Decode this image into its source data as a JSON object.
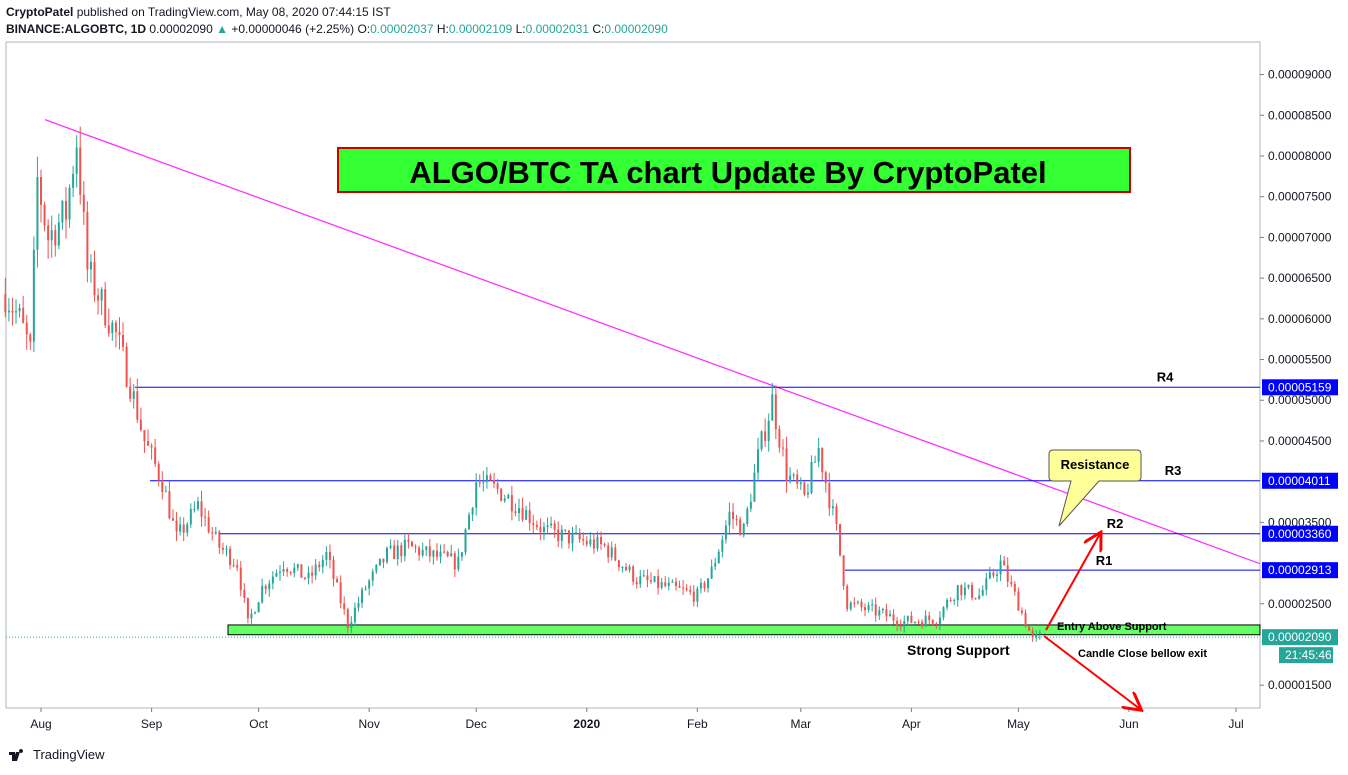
{
  "header": {
    "author": "CryptoPatel",
    "published_text": " published on TradingView.com, May 08, 2020 07:44:15 IST",
    "symbol": "BINANCE:ALGOBTC, 1D",
    "last": "0.00002090",
    "change": "+0.00000046 (+2.25%)",
    "o_label": "O:",
    "o_value": "0.00002037",
    "h_label": "H:",
    "h_value": "0.00002109",
    "l_label": "L:",
    "l_value": "0.00002031",
    "c_label": "C:",
    "c_value": "0.00002090"
  },
  "footer": {
    "brand": "TradingView"
  },
  "colors": {
    "up": "#26a69a",
    "down": "#ef5350",
    "trendline": "#ff33ff",
    "level": "#0000ff",
    "support_zone": "#66ff66",
    "title_box": "#33ff33",
    "title_border": "#cc0000",
    "callout": "#ffff99",
    "arrow": "#ff0000"
  },
  "chart_data": {
    "type": "candlestick",
    "title": "ALGO/BTC TA chart Update By CryptoPatel",
    "x_ticks": [
      "Aug",
      "Sep",
      "Oct",
      "Nov",
      "Dec",
      "2020",
      "Feb",
      "Mar",
      "Apr",
      "May",
      "Jun",
      "Jul"
    ],
    "y_ticks": [
      "0.00009000",
      "0.00008500",
      "0.00008000",
      "0.00007500",
      "0.00007000",
      "0.00006500",
      "0.00006000",
      "0.00005500",
      "0.00005000",
      "0.00004500",
      "0.00003500",
      "0.00002500",
      "0.00001500"
    ],
    "ylim": [
      1.22e-05,
      9.4e-05
    ],
    "current_price_label": "0.00002090",
    "countdown": "21:45:46",
    "levels": [
      {
        "name": "R4",
        "value": 5.159e-05,
        "label": "0.00005159"
      },
      {
        "name": "R3",
        "value": 4.011e-05,
        "label": "0.00004011"
      },
      {
        "name": "R2",
        "value": 3.36e-05,
        "label": "0.00003360"
      },
      {
        "name": "R1",
        "value": 2.913e-05,
        "label": "0.00002913"
      }
    ],
    "support_zone": [
      2.12e-05,
      2.24e-05
    ],
    "annotations": {
      "resistance": "Resistance",
      "entry": "Entry Above Support",
      "exit": "Candle Close bellow exit",
      "support": "Strong Support"
    },
    "trendline": {
      "from": [
        "2019-07-31",
        8.48e-05
      ],
      "to": [
        "2020-07-31",
        2.62e-05
      ]
    },
    "close_path": [
      [
        "2019-07-22",
        6.3e-05
      ],
      [
        "2019-07-26",
        6e-05
      ],
      [
        "2019-07-29",
        5.6e-05
      ],
      [
        "2019-07-31",
        7.7e-05
      ],
      [
        "2019-08-03",
        7e-05
      ],
      [
        "2019-08-08",
        7.3e-05
      ],
      [
        "2019-08-11",
        8.2e-05
      ],
      [
        "2019-08-14",
        6.6e-05
      ],
      [
        "2019-08-18",
        6.2e-05
      ],
      [
        "2019-08-22",
        5.8e-05
      ],
      [
        "2019-08-26",
        5.2e-05
      ],
      [
        "2019-08-30",
        4.5e-05
      ],
      [
        "2019-09-04",
        4e-05
      ],
      [
        "2019-09-08",
        3.3e-05
      ],
      [
        "2019-09-14",
        3.7e-05
      ],
      [
        "2019-09-20",
        3.2e-05
      ],
      [
        "2019-09-25",
        3e-05
      ],
      [
        "2019-09-28",
        2.25e-05
      ],
      [
        "2019-10-02",
        2.7e-05
      ],
      [
        "2019-10-08",
        3e-05
      ],
      [
        "2019-10-15",
        2.8e-05
      ],
      [
        "2019-10-20",
        3.1e-05
      ],
      [
        "2019-10-26",
        2.25e-05
      ],
      [
        "2019-10-31",
        2.7e-05
      ],
      [
        "2019-11-06",
        3.1e-05
      ],
      [
        "2019-11-12",
        3.2e-05
      ],
      [
        "2019-11-18",
        3.1e-05
      ],
      [
        "2019-11-26",
        3e-05
      ],
      [
        "2019-12-01",
        4e-05
      ],
      [
        "2019-12-07",
        3.9e-05
      ],
      [
        "2019-12-13",
        3.7e-05
      ],
      [
        "2019-12-20",
        3.4e-05
      ],
      [
        "2019-12-28",
        3.3e-05
      ],
      [
        "2020-01-06",
        3.2e-05
      ],
      [
        "2020-01-15",
        2.8e-05
      ],
      [
        "2020-01-24",
        2.7e-05
      ],
      [
        "2020-02-01",
        2.6e-05
      ],
      [
        "2020-02-05",
        2.9e-05
      ],
      [
        "2020-02-10",
        3.6e-05
      ],
      [
        "2020-02-14",
        3.4e-05
      ],
      [
        "2020-02-18",
        4.3e-05
      ],
      [
        "2020-02-22",
        5e-05
      ],
      [
        "2020-02-26",
        4.1e-05
      ],
      [
        "2020-03-02",
        3.8e-05
      ],
      [
        "2020-03-06",
        4.4e-05
      ],
      [
        "2020-03-11",
        3.4e-05
      ],
      [
        "2020-03-14",
        2.5e-05
      ],
      [
        "2020-03-22",
        2.4e-05
      ],
      [
        "2020-03-30",
        2.28e-05
      ],
      [
        "2020-04-08",
        2.32e-05
      ],
      [
        "2020-04-14",
        2.7e-05
      ],
      [
        "2020-04-20",
        2.6e-05
      ],
      [
        "2020-04-26",
        3e-05
      ],
      [
        "2020-05-01",
        2.5e-05
      ],
      [
        "2020-05-05",
        2.05e-05
      ],
      [
        "2020-05-07",
        2.1e-05
      ]
    ]
  }
}
